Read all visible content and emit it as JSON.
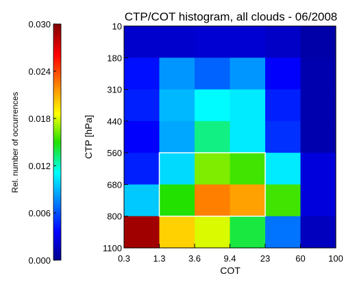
{
  "chart_data": {
    "type": "heatmap",
    "title": "CTP/COT histogram, all clouds - 06/2008",
    "xlabel": "COT",
    "ylabel": "CTP [hPa]",
    "colorbar_label": "Rel. number of occurrences",
    "x_ticks": [
      "0.3",
      "1.3",
      "3.6",
      "9.4",
      "23",
      "60",
      "100"
    ],
    "y_ticks": [
      "10",
      "180",
      "310",
      "440",
      "560",
      "680",
      "800",
      "1100"
    ],
    "colorbar_ticks": [
      "0.030",
      "0.024",
      "0.018",
      "0.012",
      "0.006",
      "0.000"
    ],
    "colorbar_range": [
      0,
      0.03
    ],
    "colormap": "rainbow (dark blue to dark red)",
    "rows": [
      "10-180",
      "180-310",
      "310-440",
      "440-560",
      "560-680",
      "680-800",
      "800-1100"
    ],
    "columns": [
      "0.3-1.3",
      "1.3-3.6",
      "3.6-9.4",
      "9.4-23",
      "23-60",
      "60-100"
    ],
    "values": [
      [
        0.002,
        0.002,
        0.0022,
        0.0022,
        0.0018,
        0.0008
      ],
      [
        0.004,
        0.008,
        0.0065,
        0.008,
        0.0035,
        0.001
      ],
      [
        0.0045,
        0.009,
        0.011,
        0.0105,
        0.0045,
        0.001
      ],
      [
        0.0035,
        0.0085,
        0.013,
        0.0105,
        0.005,
        0.001
      ],
      [
        0.0045,
        0.01,
        0.0165,
        0.0155,
        0.0105,
        0.0025
      ],
      [
        0.0095,
        0.015,
        0.0225,
        0.0215,
        0.0155,
        0.0025
      ],
      [
        0.029,
        0.02,
        0.018,
        0.014,
        0.007,
        0.0015
      ]
    ],
    "highlight_box": {
      "columns": [
        "1.3-3.6",
        "9.4-23"
      ],
      "rows": [
        "560-680",
        "680-800"
      ]
    }
  }
}
